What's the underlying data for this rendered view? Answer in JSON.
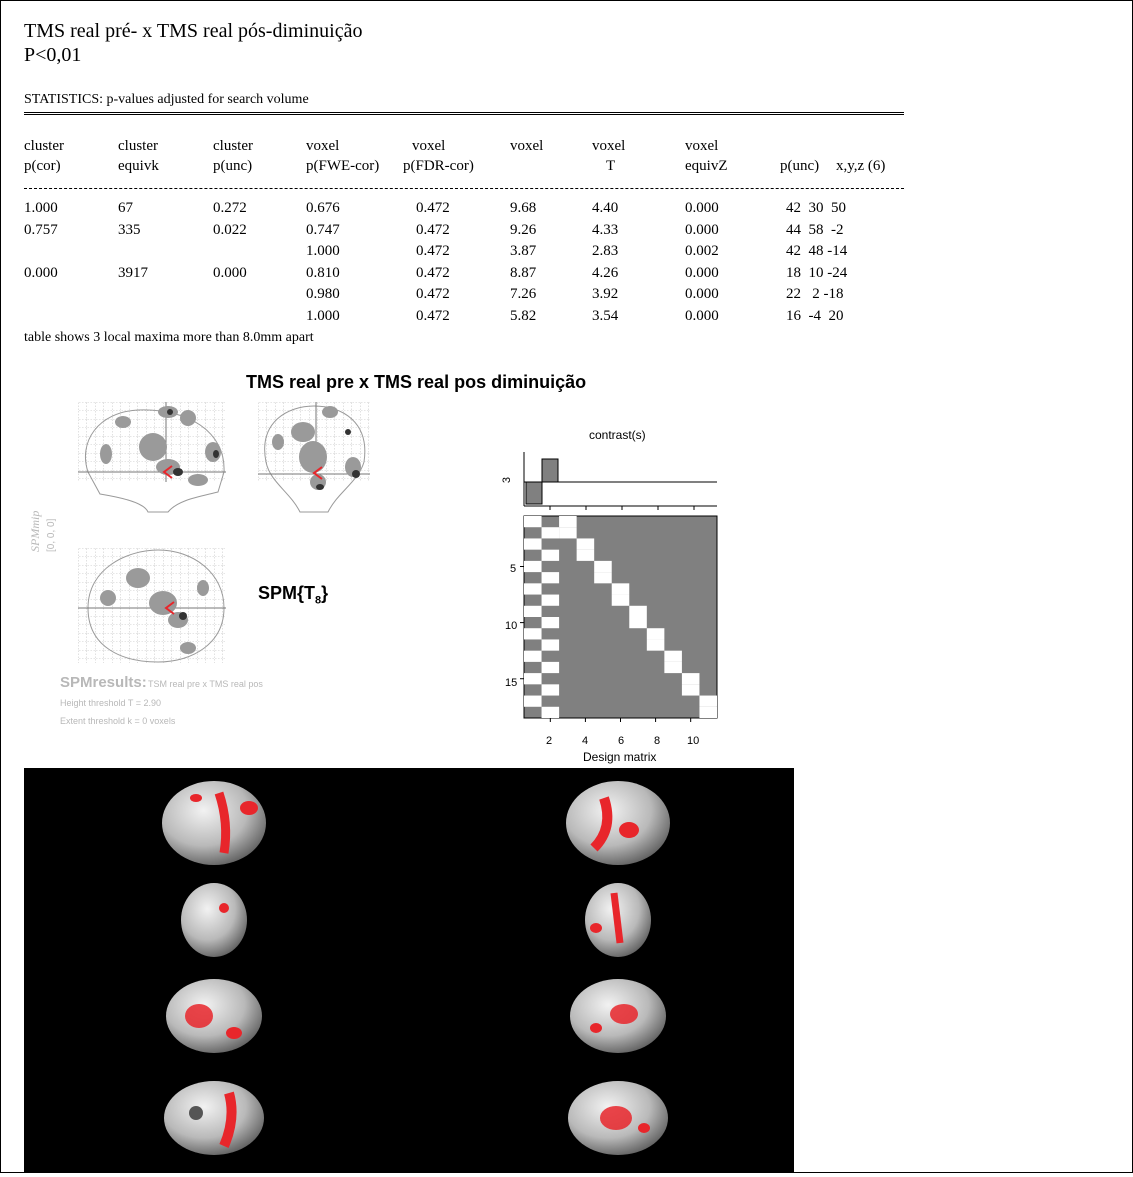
{
  "header": {
    "title_line1": "TMS real pré- x TMS real pós-diminuição",
    "title_line2": "P<0,01",
    "stats_heading": "STATISTICS: p-values adjusted for search volume"
  },
  "table": {
    "headers_top": [
      "cluster",
      "cluster",
      "cluster",
      "voxel",
      "voxel",
      "voxel",
      "voxel",
      "voxel",
      "",
      ""
    ],
    "headers_bottom": [
      "p(cor)",
      "equivk",
      "p(unc)",
      "p(FWE-cor)",
      "p(FDR-cor)",
      "",
      "T",
      "equivZ",
      "p(unc)",
      "x,y,z (6)"
    ],
    "rows": [
      [
        "1.000",
        "67",
        "0.272",
        "0.676",
        "0.472",
        "9.68",
        "4.40",
        "0.000",
        "42  30  50"
      ],
      [
        "0.757",
        "335",
        "0.022",
        "0.747",
        "0.472",
        "9.26",
        "4.33",
        "0.000",
        "44  58  -2"
      ],
      [
        "",
        "",
        "",
        "1.000",
        "0.472",
        "3.87",
        "2.83",
        "0.002",
        "42  48 -14"
      ],
      [
        "0.000",
        "3917",
        "0.000",
        "0.810",
        "0.472",
        "8.87",
        "4.26",
        "0.000",
        "18  10 -24"
      ],
      [
        "",
        "",
        "",
        "0.980",
        "0.472",
        "7.26",
        "3.92",
        "0.000",
        "22   2 -18"
      ],
      [
        "",
        "",
        "",
        "1.000",
        "0.472",
        "5.82",
        "3.54",
        "0.000",
        "16  -4  20"
      ]
    ],
    "footnote": "table shows 3 local maxima more than 8.0mm apart"
  },
  "figure": {
    "title": "TMS real pre x TMS real pos diminuição",
    "spm_label": "SPM{T",
    "spm_subscript": "8",
    "spm_close": "}",
    "contrast_label": "contrast(s)",
    "contrast_tick": "3",
    "design_label": "Design matrix",
    "y_ticks": [
      "5",
      "10",
      "15"
    ],
    "x_ticks": [
      "2",
      "4",
      "6",
      "8",
      "10"
    ],
    "spmmip_label": "SPMmip",
    "spmmip_coord": "[0, 0, 0]",
    "results_title": "SPMresults:",
    "results_sub": "TSM real pre x TMS real pos",
    "height_threshold": "Height threshold T = 2.90",
    "extent_threshold": "Extent threshold k = 0 voxels"
  },
  "colors": {
    "activation": "#e8262b",
    "matrix_gray": "#808080",
    "background_render": "#000000",
    "faded_text": "#b8b8b8"
  }
}
